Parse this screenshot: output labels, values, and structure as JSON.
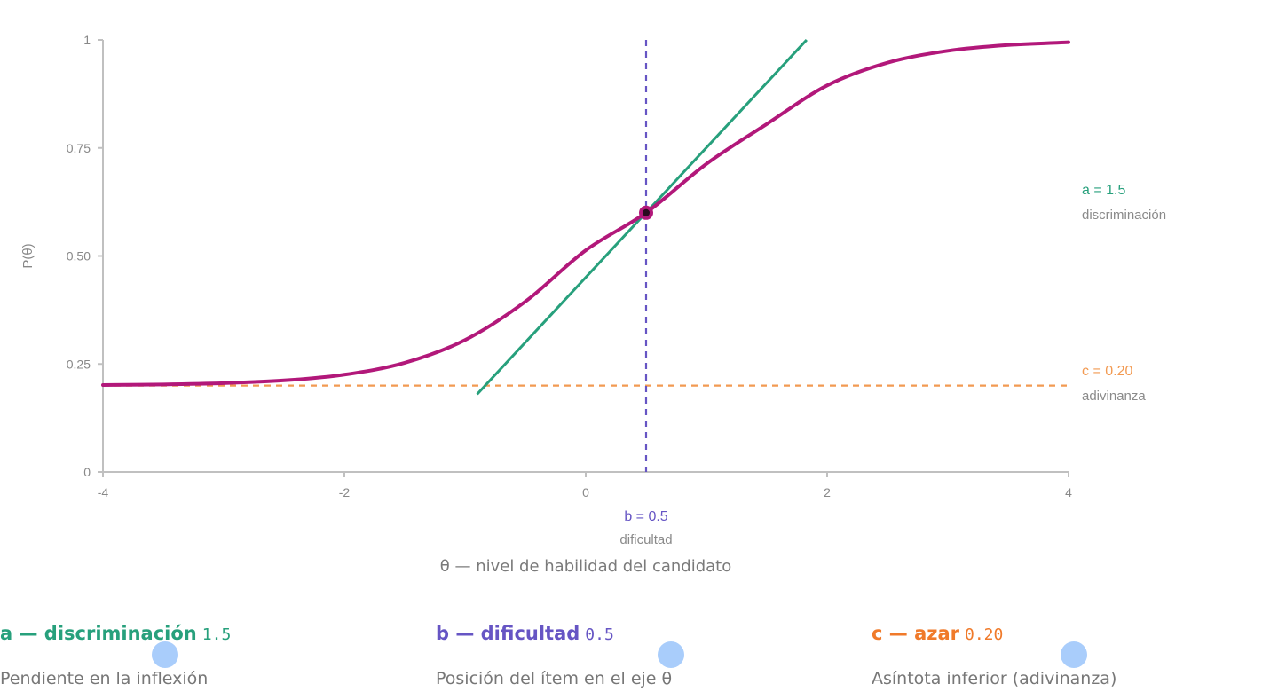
{
  "colors": {
    "curve": "#b2187a",
    "tangent": "#27a07c",
    "difficulty": "#6655c4",
    "guessing": "#f29a52",
    "axis": "#c0c0c0",
    "tick_text": "#888888",
    "slider_thumb": "#a9cdfb"
  },
  "chart_data": {
    "type": "line",
    "title": "",
    "xlabel": "θ — nivel de habilidad del candidato",
    "ylabel": "P(θ)",
    "xlim": [
      -4,
      4
    ],
    "ylim": [
      0,
      1
    ],
    "x_ticks": [
      -4,
      -2,
      0,
      2,
      4
    ],
    "x_tick_labels": [
      "-4",
      "-2",
      "0",
      "2",
      "4"
    ],
    "y_ticks": [
      0,
      0.25,
      0.5,
      0.75,
      1
    ],
    "y_tick_labels": [
      "0",
      "0.25",
      "0.50",
      "0.75",
      "1"
    ],
    "grid": false,
    "model": "3PL",
    "parameters": {
      "a": 1.5,
      "b": 0.5,
      "c": 0.2
    },
    "series": [
      {
        "x": [
          -4,
          -3.5,
          -3,
          -2.5,
          -2,
          -1.5,
          -1,
          -0.5,
          0,
          0.5,
          1,
          1.5,
          2,
          2.5,
          3,
          3.5,
          4
        ],
        "y": [
          0.2012,
          0.2026,
          0.2056,
          0.2119,
          0.2253,
          0.2527,
          0.3054,
          0.3946,
          0.5131,
          0.6,
          0.7131,
          0.8054,
          0.8947,
          0.9473,
          0.9747,
          0.9881,
          0.9945
        ]
      }
    ],
    "inflection_point": {
      "x": 0.5,
      "y": 0.6
    },
    "tangent_line": {
      "x": [
        -0.9,
        1.83
      ],
      "y": [
        0.18,
        1.0
      ]
    },
    "annotations": {
      "a": {
        "label": "a = 1.5",
        "sublabel": "discriminación"
      },
      "b": {
        "label": "b = 0.5",
        "sublabel": "dificultad"
      },
      "c": {
        "label": "c = 0.20",
        "sublabel": "adivinanza"
      }
    }
  },
  "controls": {
    "a": {
      "title": "a — discriminación",
      "value": "1.5",
      "description": "Pendiente en la inflexión",
      "min": 0.5,
      "max": 3,
      "level": 1.5
    },
    "b": {
      "title": "b — dificultad",
      "value": "0.5",
      "description": "Posición del ítem en el eje θ",
      "min": -3,
      "max": 3,
      "level": 0.5
    },
    "c": {
      "title": "c — azar",
      "value": "0.20",
      "description": "Asíntota inferior (adivinanza)",
      "min": 0,
      "max": 0.5,
      "level": 0.2
    }
  }
}
